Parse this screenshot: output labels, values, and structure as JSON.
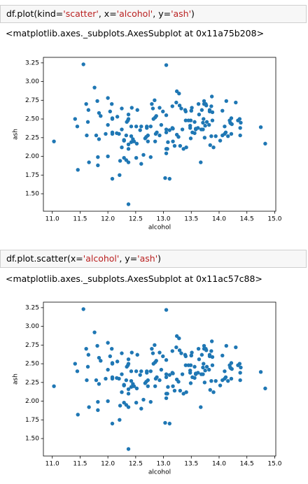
{
  "cells": [
    {
      "input": [
        "df.plot(kind=",
        "'scatter'",
        ", x=",
        "'alcohol'",
        ", y=",
        "'ash'",
        ")"
      ],
      "output": "<matplotlib.axes._subplots.AxesSubplot at 0x11a75b208>"
    },
    {
      "input": [
        "df.plot.scatter(x=",
        "'alcohol'",
        ", y=",
        "'ash'",
        ")"
      ],
      "output": "<matplotlib.axes._subplots.AxesSubplot at 0x11ac57c88>"
    }
  ],
  "chart_data": [
    {
      "type": "scatter",
      "xlabel": "alcohol",
      "ylabel": "ash",
      "color": "#1f77b4",
      "x": [
        14.23,
        13.2,
        13.16,
        14.37,
        13.24,
        14.2,
        14.39,
        14.06,
        14.83,
        13.86,
        14.1,
        14.12,
        13.75,
        14.75,
        14.38,
        13.63,
        14.3,
        13.83,
        14.19,
        13.64,
        14.06,
        12.93,
        13.71,
        12.85,
        13.5,
        13.05,
        13.39,
        13.3,
        13.87,
        14.02,
        13.73,
        13.58,
        13.68,
        13.76,
        13.51,
        13.48,
        13.28,
        13.05,
        13.07,
        14.22,
        13.56,
        13.41,
        13.88,
        13.24,
        13.05,
        14.21,
        14.38,
        13.9,
        14.1,
        13.94,
        13.05,
        13.83,
        13.82,
        13.77,
        13.74,
        13.56,
        14.22,
        13.29,
        13.72,
        12.37,
        12.33,
        12.64,
        13.67,
        12.37,
        12.17,
        12.37,
        13.11,
        12.37,
        13.34,
        12.21,
        12.29,
        13.86,
        13.49,
        12.99,
        11.96,
        11.66,
        13.03,
        11.84,
        12.33,
        12.7,
        12.0,
        12.72,
        12.08,
        13.05,
        11.84,
        12.67,
        12.16,
        11.65,
        11.64,
        12.08,
        12.08,
        12.0,
        12.69,
        12.29,
        11.62,
        12.47,
        11.81,
        12.29,
        12.37,
        12.29,
        12.08,
        12.6,
        12.34,
        11.82,
        12.51,
        12.42,
        12.25,
        12.72,
        12.22,
        11.61,
        11.46,
        12.52,
        11.76,
        11.41,
        12.08,
        11.03,
        11.82,
        12.42,
        12.77,
        12.0,
        11.45,
        11.56,
        12.42,
        13.05,
        11.87,
        12.07,
        12.43,
        11.79,
        12.37,
        12.04,
        12.86,
        12.88,
        12.81,
        12.7,
        12.51,
        12.6,
        12.25,
        12.53,
        13.49,
        12.84,
        12.93,
        13.36,
        13.52,
        13.62,
        12.25,
        13.16,
        13.88,
        12.87,
        13.32,
        13.08,
        13.5,
        12.79,
        13.11,
        13.23,
        12.58,
        13.17,
        13.84,
        12.45,
        14.34,
        13.48,
        12.36,
        13.69,
        12.85,
        12.96,
        13.78,
        13.73,
        13.45,
        12.82,
        13.58,
        13.4,
        12.2,
        12.77,
        14.16,
        13.71,
        13.4,
        13.27,
        13.17,
        14.13
      ],
      "y": [
        2.43,
        2.14,
        2.67,
        2.5,
        2.87,
        2.45,
        2.45,
        2.61,
        2.17,
        2.27,
        2.3,
        2.32,
        2.41,
        2.39,
        2.38,
        2.7,
        2.72,
        2.62,
        2.48,
        2.56,
        2.28,
        2.65,
        2.36,
        2.52,
        2.61,
        3.22,
        2.62,
        2.14,
        2.8,
        2.21,
        2.7,
        2.36,
        2.36,
        2.7,
        2.65,
        2.41,
        2.84,
        2.55,
        2.1,
        2.51,
        2.31,
        2.12,
        2.59,
        2.29,
        2.1,
        2.44,
        2.28,
        2.12,
        2.4,
        2.27,
        2.04,
        2.6,
        2.42,
        2.68,
        2.25,
        2.46,
        2.3,
        2.68,
        2.5,
        1.36,
        2.28,
        2.02,
        1.92,
        2.16,
        2.53,
        2.56,
        1.7,
        1.92,
        2.36,
        1.75,
        2.21,
        2.67,
        2.24,
        2.6,
        2.3,
        1.92,
        1.71,
        2.23,
        1.95,
        2.4,
        2.0,
        2.2,
        2.51,
        2.32,
        2.58,
        2.24,
        2.31,
        2.62,
        2.46,
        2.3,
        2.32,
        2.42,
        2.26,
        2.22,
        2.28,
        2.2,
        2.74,
        1.98,
        2.1,
        2.21,
        1.7,
        1.9,
        2.46,
        1.88,
        1.98,
        2.27,
        2.12,
        2.28,
        1.94,
        2.7,
        1.82,
        2.17,
        2.92,
        2.5,
        2.5,
        2.2,
        1.99,
        2.19,
        1.99,
        2.78,
        2.4,
        3.23,
        2.4,
        2.36,
        2.54,
        2.7,
        2.65,
        2.28,
        2.5,
        2.6,
        2.3,
        2.32,
        2.64,
        2.38,
        2.4,
        2.4,
        2.36,
        2.62,
        2.48,
        2.75,
        2.28,
        2.1,
        2.32,
        2.38,
        2.64,
        2.38,
        2.48,
        2.54,
        2.64,
        2.19,
        2.61,
        2.7,
        2.35,
        2.72,
        2.35,
        2.2,
        2.15,
        2.23,
        2.48,
        2.38,
        2.48,
        2.62,
        2.2,
        2.42,
        2.46,
        2.74,
        2.48,
        2.5,
        2.37,
        2.6,
        2.3,
        2.4,
        2.27,
        2.45,
        2.48,
        2.26,
        2.37,
        2.74
      ],
      "xlim": [
        10.84,
        15.02
      ],
      "ylim": [
        1.2665,
        3.3235
      ],
      "xticks": [
        {
          "value": 11,
          "label": "11.0"
        },
        11.5,
        {
          "value": 12,
          "label": "12.0"
        },
        12.5,
        {
          "value": 13,
          "label": "13.0"
        },
        13.5,
        {
          "value": 14,
          "label": "14.0"
        },
        14.5,
        {
          "value": 15,
          "label": "15.0"
        }
      ],
      "yticks": [
        {
          "value": 1.5,
          "label": "1.50"
        },
        1.75,
        {
          "value": 2,
          "label": "2.00"
        },
        2.25,
        {
          "value": 2.5,
          "label": "2.50"
        },
        2.75,
        {
          "value": 3,
          "label": "3.00"
        },
        3.25
      ]
    },
    {
      "type": "scatter",
      "xlabel": "alcohol",
      "ylabel": "ash",
      "color": "#1f77b4",
      "x": [
        14.23,
        13.2,
        13.16,
        14.37,
        13.24,
        14.2,
        14.39,
        14.06,
        14.83,
        13.86,
        14.1,
        14.12,
        13.75,
        14.75,
        14.38,
        13.63,
        14.3,
        13.83,
        14.19,
        13.64,
        14.06,
        12.93,
        13.71,
        12.85,
        13.5,
        13.05,
        13.39,
        13.3,
        13.87,
        14.02,
        13.73,
        13.58,
        13.68,
        13.76,
        13.51,
        13.48,
        13.28,
        13.05,
        13.07,
        14.22,
        13.56,
        13.41,
        13.88,
        13.24,
        13.05,
        14.21,
        14.38,
        13.9,
        14.1,
        13.94,
        13.05,
        13.83,
        13.82,
        13.77,
        13.74,
        13.56,
        14.22,
        13.29,
        13.72,
        12.37,
        12.33,
        12.64,
        13.67,
        12.37,
        12.17,
        12.37,
        13.11,
        12.37,
        13.34,
        12.21,
        12.29,
        13.86,
        13.49,
        12.99,
        11.96,
        11.66,
        13.03,
        11.84,
        12.33,
        12.7,
        12.0,
        12.72,
        12.08,
        13.05,
        11.84,
        12.67,
        12.16,
        11.65,
        11.64,
        12.08,
        12.08,
        12.0,
        12.69,
        12.29,
        11.62,
        12.47,
        11.81,
        12.29,
        12.37,
        12.29,
        12.08,
        12.6,
        12.34,
        11.82,
        12.51,
        12.42,
        12.25,
        12.72,
        12.22,
        11.61,
        11.46,
        12.52,
        11.76,
        11.41,
        12.08,
        11.03,
        11.82,
        12.42,
        12.77,
        12.0,
        11.45,
        11.56,
        12.42,
        13.05,
        11.87,
        12.07,
        12.43,
        11.79,
        12.37,
        12.04,
        12.86,
        12.88,
        12.81,
        12.7,
        12.51,
        12.6,
        12.25,
        12.53,
        13.49,
        12.84,
        12.93,
        13.36,
        13.52,
        13.62,
        12.25,
        13.16,
        13.88,
        12.87,
        13.32,
        13.08,
        13.5,
        12.79,
        13.11,
        13.23,
        12.58,
        13.17,
        13.84,
        12.45,
        14.34,
        13.48,
        12.36,
        13.69,
        12.85,
        12.96,
        13.78,
        13.73,
        13.45,
        12.82,
        13.58,
        13.4,
        12.2,
        12.77,
        14.16,
        13.71,
        13.4,
        13.27,
        13.17,
        14.13
      ],
      "y": [
        2.43,
        2.14,
        2.67,
        2.5,
        2.87,
        2.45,
        2.45,
        2.61,
        2.17,
        2.27,
        2.3,
        2.32,
        2.41,
        2.39,
        2.38,
        2.7,
        2.72,
        2.62,
        2.48,
        2.56,
        2.28,
        2.65,
        2.36,
        2.52,
        2.61,
        3.22,
        2.62,
        2.14,
        2.8,
        2.21,
        2.7,
        2.36,
        2.36,
        2.7,
        2.65,
        2.41,
        2.84,
        2.55,
        2.1,
        2.51,
        2.31,
        2.12,
        2.59,
        2.29,
        2.1,
        2.44,
        2.28,
        2.12,
        2.4,
        2.27,
        2.04,
        2.6,
        2.42,
        2.68,
        2.25,
        2.46,
        2.3,
        2.68,
        2.5,
        1.36,
        2.28,
        2.02,
        1.92,
        2.16,
        2.53,
        2.56,
        1.7,
        1.92,
        2.36,
        1.75,
        2.21,
        2.67,
        2.24,
        2.6,
        2.3,
        1.92,
        1.71,
        2.23,
        1.95,
        2.4,
        2.0,
        2.2,
        2.51,
        2.32,
        2.58,
        2.24,
        2.31,
        2.62,
        2.46,
        2.3,
        2.32,
        2.42,
        2.26,
        2.22,
        2.28,
        2.2,
        2.74,
        1.98,
        2.1,
        2.21,
        1.7,
        1.9,
        2.46,
        1.88,
        1.98,
        2.27,
        2.12,
        2.28,
        1.94,
        2.7,
        1.82,
        2.17,
        2.92,
        2.5,
        2.5,
        2.2,
        1.99,
        2.19,
        1.99,
        2.78,
        2.4,
        3.23,
        2.4,
        2.36,
        2.54,
        2.7,
        2.65,
        2.28,
        2.5,
        2.6,
        2.3,
        2.32,
        2.64,
        2.38,
        2.4,
        2.4,
        2.36,
        2.62,
        2.48,
        2.75,
        2.28,
        2.1,
        2.32,
        2.38,
        2.64,
        2.38,
        2.48,
        2.54,
        2.64,
        2.19,
        2.61,
        2.7,
        2.35,
        2.72,
        2.35,
        2.2,
        2.15,
        2.23,
        2.48,
        2.38,
        2.48,
        2.62,
        2.2,
        2.42,
        2.46,
        2.74,
        2.48,
        2.5,
        2.37,
        2.6,
        2.3,
        2.4,
        2.27,
        2.45,
        2.48,
        2.26,
        2.37,
        2.74
      ],
      "xlim": [
        10.84,
        15.02
      ],
      "ylim": [
        1.2665,
        3.3235
      ],
      "xticks": [
        {
          "value": 11,
          "label": "11.0"
        },
        11.5,
        {
          "value": 12,
          "label": "12.0"
        },
        12.5,
        {
          "value": 13,
          "label": "13.0"
        },
        13.5,
        {
          "value": 14,
          "label": "14.0"
        },
        14.5,
        {
          "value": 15,
          "label": "15.0"
        }
      ],
      "yticks": [
        {
          "value": 1.5,
          "label": "1.50"
        },
        1.75,
        {
          "value": 2,
          "label": "2.00"
        },
        2.25,
        {
          "value": 2.5,
          "label": "2.50"
        },
        2.75,
        {
          "value": 3,
          "label": "3.00"
        },
        3.25
      ]
    }
  ]
}
